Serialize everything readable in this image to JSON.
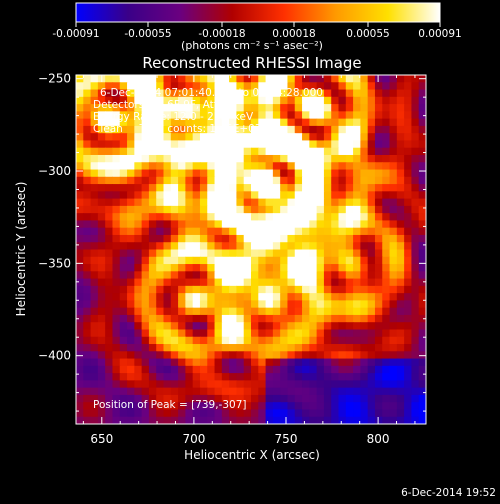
{
  "chart_data": {
    "type": "heatmap",
    "title": "Reconstructed RHESSI Image",
    "xlabel": "Heliocentric X (arcsec)",
    "ylabel": "Heliocentric Y (arcsec)",
    "xlim": [
      636,
      826
    ],
    "ylim": [
      -437,
      -248
    ],
    "xticks": [
      650,
      700,
      750,
      800
    ],
    "yticks": [
      -250,
      -300,
      -350,
      -400
    ],
    "colorbar": {
      "vmin": -0.00091,
      "vmax": 0.00091,
      "ticks": [
        "-0.00091",
        "-0.00055",
        "-0.00018",
        "0.00018",
        "0.00055",
        "0.00091"
      ],
      "tick_values": [
        -0.00091,
        -0.00055,
        -0.00018,
        0.00018,
        0.00055,
        0.00091
      ],
      "unit_label": "(photons cm⁻² s⁻¹ asec⁻²)",
      "colormap": [
        "#0000ff",
        "#3a0088",
        "#6a0080",
        "#b00000",
        "#ff3000",
        "#ff9a00",
        "#ffe000",
        "#ffffff"
      ]
    },
    "annotations": [
      "6-Dec-2014 07:01:40.000 to 07:04:28.000",
      "Detectors: 3F 6F 9F, Att 0",
      "Energy Range: 12.0 - 25.0 keV",
      "Clean     Total counts: 1.45E+03"
    ],
    "peak": [
      739,
      -307
    ],
    "peak_label": "Position of Peak = [739,-307]",
    "bright_sources": [
      {
        "x": 655,
        "y": -272,
        "level": 0.85
      },
      {
        "x": 739,
        "y": -307,
        "level": 1.0
      },
      {
        "x": 695,
        "y": -265,
        "level": 0.7
      },
      {
        "x": 765,
        "y": -265,
        "level": 0.75
      },
      {
        "x": 700,
        "y": -370,
        "level": 0.6
      },
      {
        "x": 785,
        "y": -350,
        "level": 0.55
      },
      {
        "x": 740,
        "y": -370,
        "level": 0.5
      }
    ]
  },
  "footer": {
    "timestamp": "6-Dec-2014 19:52"
  }
}
